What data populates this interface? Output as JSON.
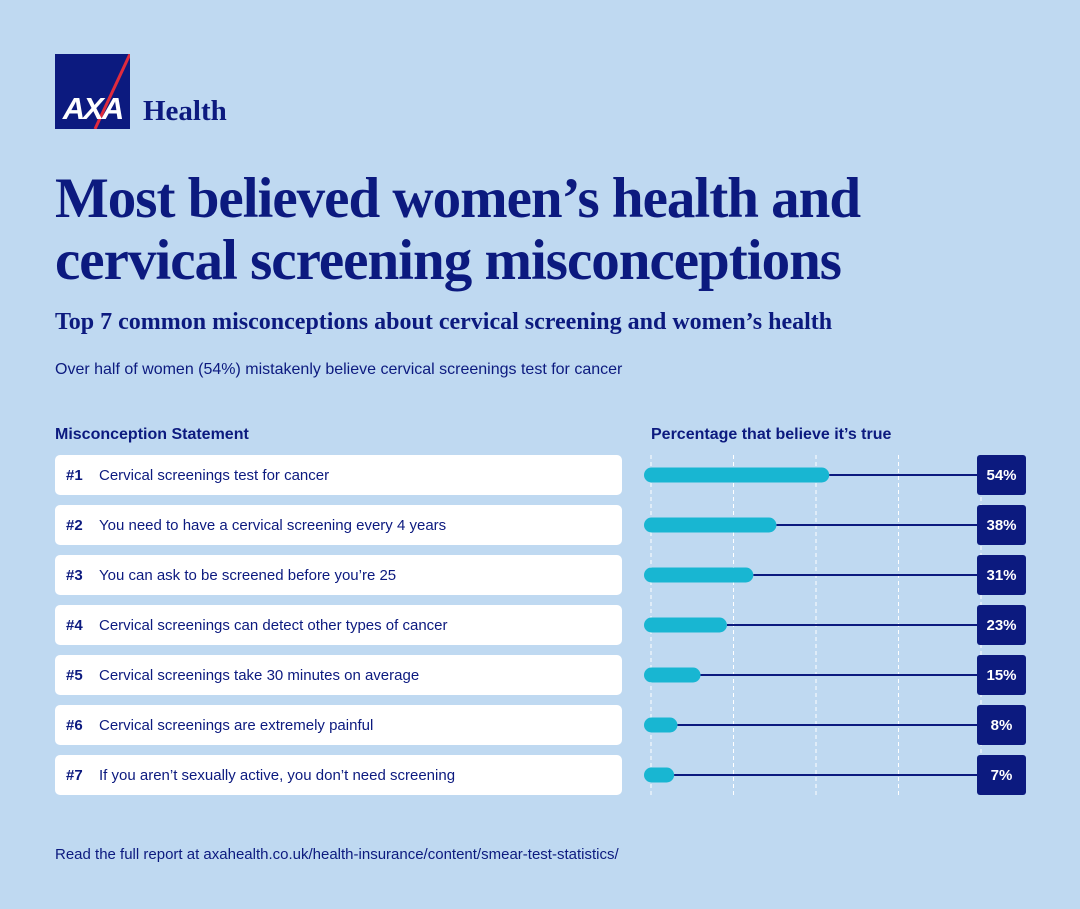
{
  "brand": {
    "logo_text": "AXA",
    "name": "Health",
    "colors": {
      "navy": "#0c1a7f",
      "red": "#e02b3d",
      "teal": "#18b6d2",
      "background": "#bfd9f1"
    }
  },
  "title": "Most believed women’s health and cervical screening misconceptions",
  "subtitle": "Top 7 common misconceptions about cervical screening and women’s health",
  "lead": "Over half of women (54%) mistakenly believe cervical screenings test for cancer",
  "chart_data": {
    "type": "bar",
    "orientation": "horizontal",
    "title": "Most believed women’s health and cervical screening misconceptions",
    "xlabel": "Percentage that believe it’s true",
    "ylabel": "Misconception Statement",
    "xlim": [
      0,
      100
    ],
    "grid": true,
    "categories": [
      "Cervical screenings test for cancer",
      "You need to have a cervical screening every 4 years",
      "You can ask to be screened before you’re 25",
      "Cervical screenings can detect other types of cancer",
      "Cervical screenings take 30 minutes on average",
      "Cervical screenings are extremely painful",
      "If you aren’t sexually active, you don’t need screening"
    ],
    "ranks": [
      "#1",
      "#2",
      "#3",
      "#4",
      "#5",
      "#6",
      "#7"
    ],
    "values": [
      54,
      38,
      31,
      23,
      15,
      8,
      7
    ],
    "value_labels": [
      "54%",
      "38%",
      "31%",
      "23%",
      "15%",
      "8%",
      "7%"
    ]
  },
  "footer": "Read the full report at axahealth.co.uk/health-insurance/content/smear-test-statistics/"
}
